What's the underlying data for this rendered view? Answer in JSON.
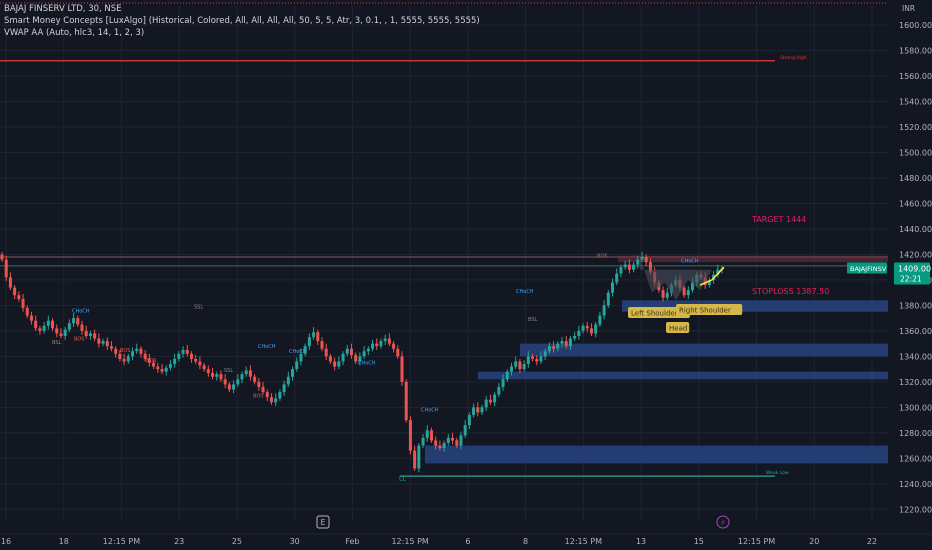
{
  "legend": {
    "line1": "BAJAJ FINSERV LTD, 30, NSE",
    "line2": "Smart Money Concepts [LuxAlgo] (Historical, Colored, All, All, All, All, 50, 5, 5, Atr, 3, 0.1, , 1, 5555, 5555, 5555)",
    "line3": "VWAP AA (Auto, hlc3, 14, 1, 2, 3)"
  },
  "colors": {
    "background": "#131722",
    "grid": "#1f2433",
    "up_candle": "#26a69a",
    "down_candle": "#ef5350",
    "order_block": "#2a4a8c",
    "strong_high": "#e53935",
    "weak_low": "#26a69a",
    "axis_text": "#b2b5be",
    "last_price_bg": "#089981",
    "target_text": "#e91e63",
    "pattern_fill": "#4a4f5c",
    "pattern_label": "#d6b84a",
    "trend_line": "#ffeb3b",
    "bos_text": "#ef5350",
    "choch_text": "#42a5f5"
  },
  "chart_data": {
    "type": "candlestick",
    "symbol": "BAJAJ FINSERV LTD",
    "timeframe": "30",
    "exchange": "NSE",
    "currency": "INR",
    "ylim": [
      1210,
      1615
    ],
    "y_ticks": [
      "1600.00",
      "1580.00",
      "1560.00",
      "1540.00",
      "1520.00",
      "1500.00",
      "1480.00",
      "1460.00",
      "1440.00",
      "1420.00",
      "1400.00",
      "1380.00",
      "1360.00",
      "1340.00",
      "1320.00",
      "1300.00",
      "1280.00",
      "1260.00",
      "1240.00",
      "1220.00"
    ],
    "x_ticks": [
      "16",
      "18",
      "12:15 PM",
      "23",
      "25",
      "30",
      "Feb",
      "12:15 PM",
      "6",
      "8",
      "12:15 PM",
      "13",
      "15",
      "12:15 PM",
      "20",
      "22"
    ],
    "last_price": {
      "value": "1409.00",
      "symbol": "BAJAJFINSV",
      "countdown": "22:21"
    },
    "closes": [
      1416,
      1402,
      1394,
      1388,
      1385,
      1378,
      1372,
      1368,
      1362,
      1360,
      1364,
      1368,
      1362,
      1358,
      1356,
      1361,
      1366,
      1370,
      1365,
      1360,
      1356,
      1358,
      1354,
      1350,
      1352,
      1348,
      1346,
      1342,
      1338,
      1336,
      1340,
      1344,
      1346,
      1342,
      1338,
      1335,
      1332,
      1330,
      1328,
      1331,
      1334,
      1338,
      1342,
      1345,
      1342,
      1338,
      1336,
      1333,
      1330,
      1327,
      1324,
      1326,
      1322,
      1318,
      1314,
      1318,
      1322,
      1326,
      1329,
      1324,
      1320,
      1316,
      1312,
      1308,
      1304,
      1307,
      1312,
      1318,
      1324,
      1330,
      1336,
      1342,
      1348,
      1355,
      1359,
      1352,
      1346,
      1340,
      1336,
      1332,
      1336,
      1342,
      1346,
      1341,
      1336,
      1340,
      1344,
      1346,
      1350,
      1348,
      1352,
      1354,
      1350,
      1346,
      1340,
      1320,
      1290,
      1266,
      1252,
      1270,
      1276,
      1282,
      1274,
      1270,
      1268,
      1272,
      1276,
      1274,
      1270,
      1278,
      1286,
      1294,
      1300,
      1296,
      1300,
      1306,
      1304,
      1310,
      1316,
      1322,
      1328,
      1332,
      1336,
      1330,
      1334,
      1340,
      1338,
      1336,
      1340,
      1344,
      1348,
      1346,
      1350,
      1352,
      1348,
      1354,
      1356,
      1360,
      1364,
      1362,
      1358,
      1365,
      1372,
      1380,
      1390,
      1398,
      1405,
      1410,
      1412,
      1408,
      1412,
      1416,
      1418,
      1414,
      1406,
      1398,
      1392,
      1386,
      1390,
      1396,
      1400,
      1394,
      1388,
      1392,
      1398,
      1404,
      1402,
      1396,
      1400,
      1404,
      1408,
      1409
    ],
    "series": [
      {
        "name": "Strong High",
        "values": [
          1572
        ]
      },
      {
        "name": "Weak Low",
        "values": [
          1246
        ]
      }
    ],
    "order_blocks": [
      {
        "top": 1384,
        "bottom": 1375
      },
      {
        "top": 1350,
        "bottom": 1340
      },
      {
        "top": 1328,
        "bottom": 1322
      },
      {
        "top": 1270,
        "bottom": 1256
      }
    ],
    "levels": [
      {
        "value": 1418,
        "label": ""
      },
      {
        "value": 1411,
        "label": ""
      }
    ],
    "annotations": [
      {
        "text": "Strong High",
        "price": 1572
      },
      {
        "text": "Weak Low",
        "price": 1246
      },
      {
        "text": "TARGET  1444",
        "price": 1444
      },
      {
        "text": "STOPLOSS  1387.50",
        "price": 1387.5
      },
      {
        "text": "LL",
        "price": 1241
      },
      {
        "text": "BOS",
        "price": 1351
      },
      {
        "text": "BOS",
        "price": 1342
      },
      {
        "text": "BOS",
        "price": 1334
      },
      {
        "text": "BOS",
        "price": 1306
      },
      {
        "text": "BOS",
        "price": 1416
      },
      {
        "text": "CHoCH",
        "price": 1373
      },
      {
        "text": "CHoCH",
        "price": 1345
      },
      {
        "text": "CHoCH",
        "price": 1341
      },
      {
        "text": "CHoCH",
        "price": 1332
      },
      {
        "text": "CHoCH",
        "price": 1295
      },
      {
        "text": "CHoCH",
        "price": 1388
      },
      {
        "text": "CHoCH",
        "price": 1412
      },
      {
        "text": "SSL",
        "price": 1376
      },
      {
        "text": "SSL",
        "price": 1326
      },
      {
        "text": "BSL",
        "price": 1348
      },
      {
        "text": "BSL",
        "price": 1366
      }
    ],
    "pattern_labels": [
      "Left Shoulder",
      "Head",
      "Right Shoulder"
    ],
    "bottom_icons": [
      "E",
      "⚡"
    ]
  }
}
